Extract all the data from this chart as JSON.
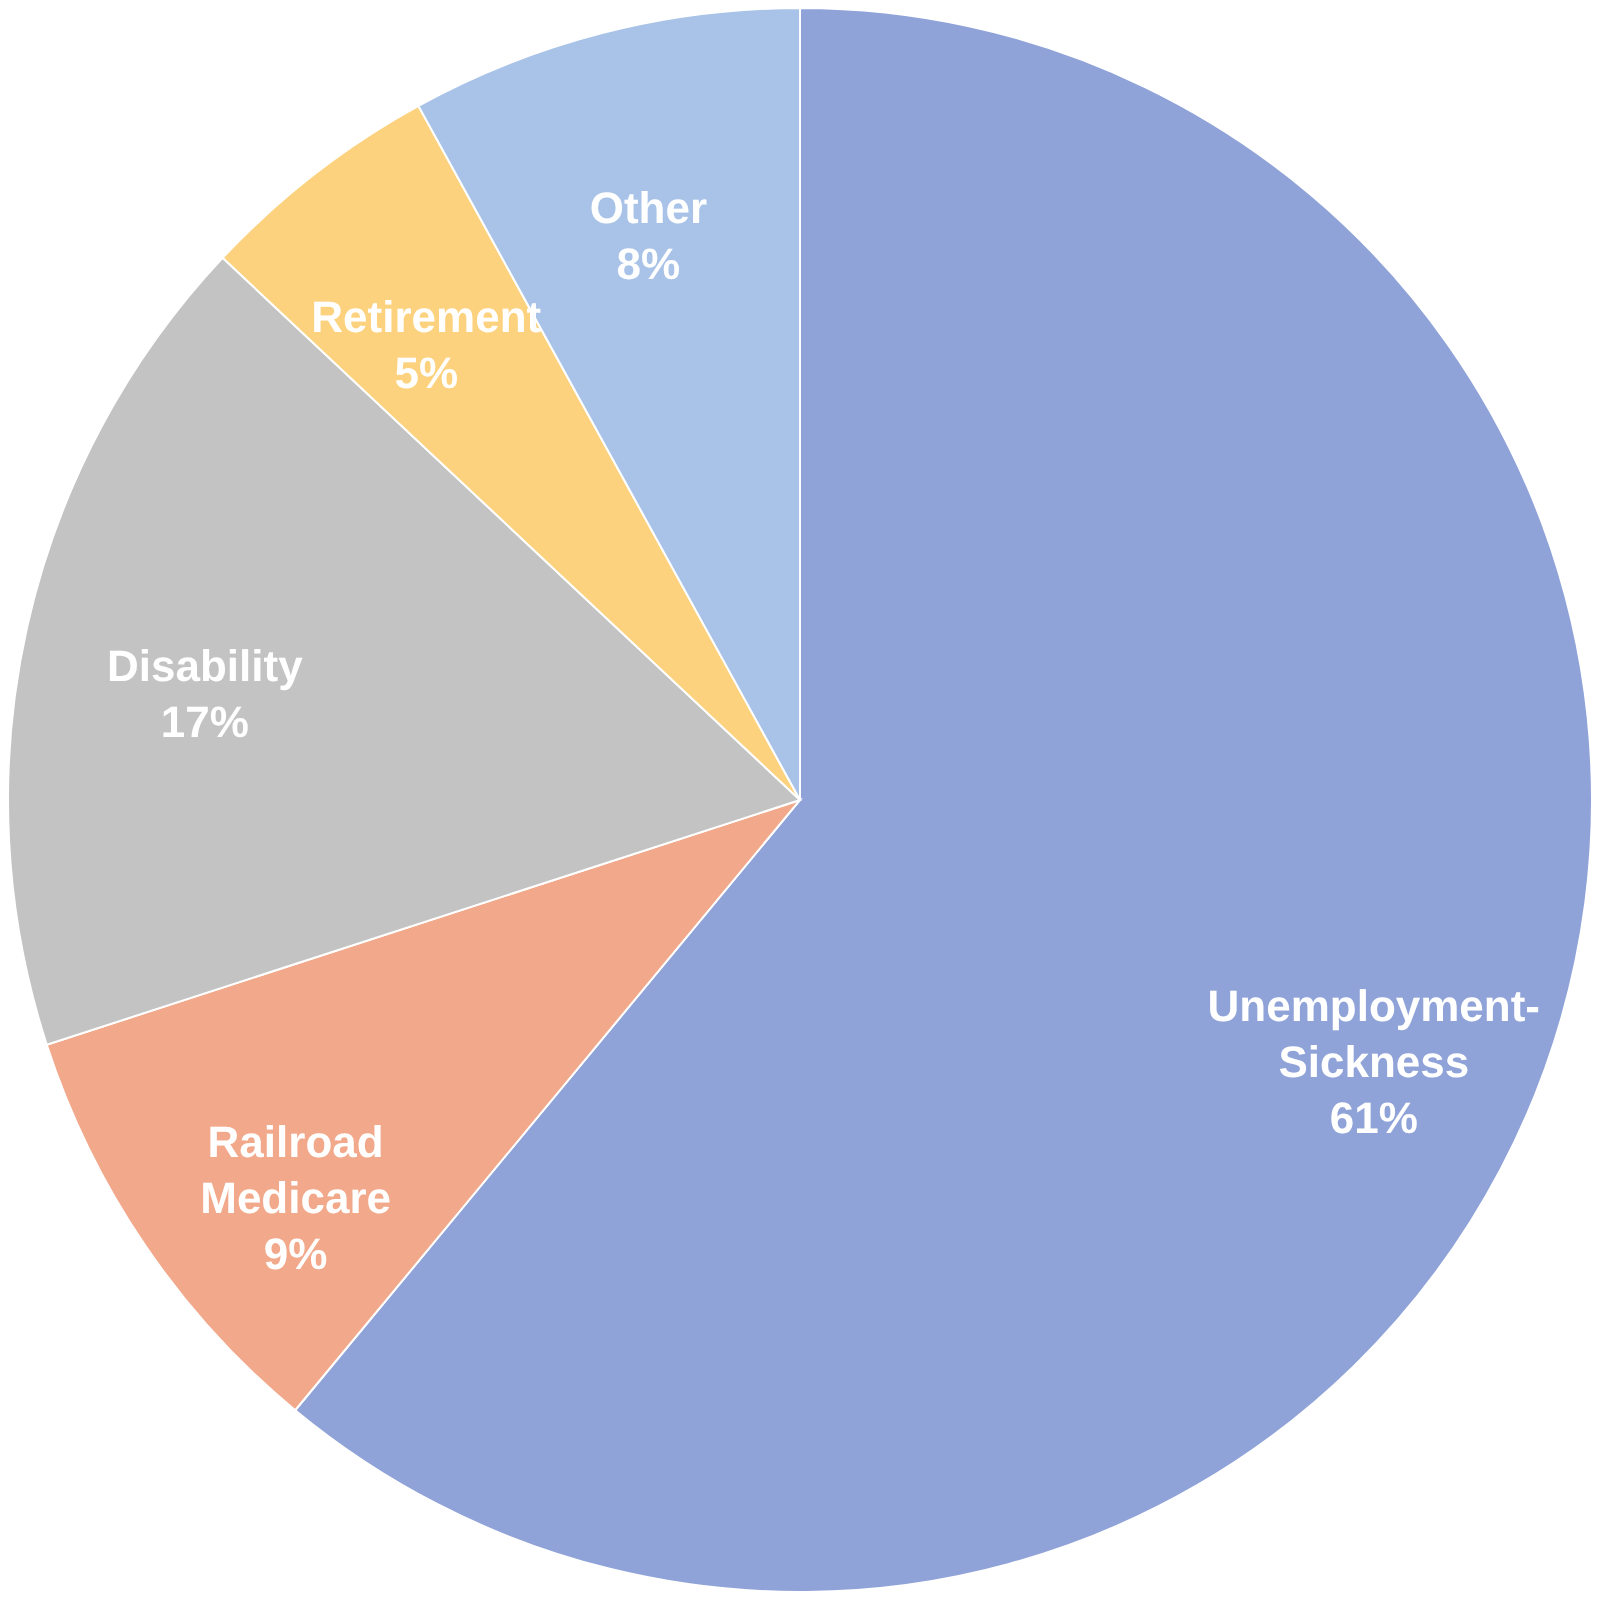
{
  "chart_data": {
    "type": "pie",
    "categories": [
      "Unemployment-Sickness",
      "Railroad Medicare",
      "Disability",
      "Retirement",
      "Other"
    ],
    "values": [
      61,
      9,
      17,
      5,
      8
    ],
    "colors": [
      "#8fa3d8",
      "#f2a88a",
      "#c3c3c3",
      "#fdd27f",
      "#a9c3e8"
    ],
    "value_labels": [
      "61%",
      "9%",
      "17%",
      "5%",
      "8%"
    ]
  }
}
